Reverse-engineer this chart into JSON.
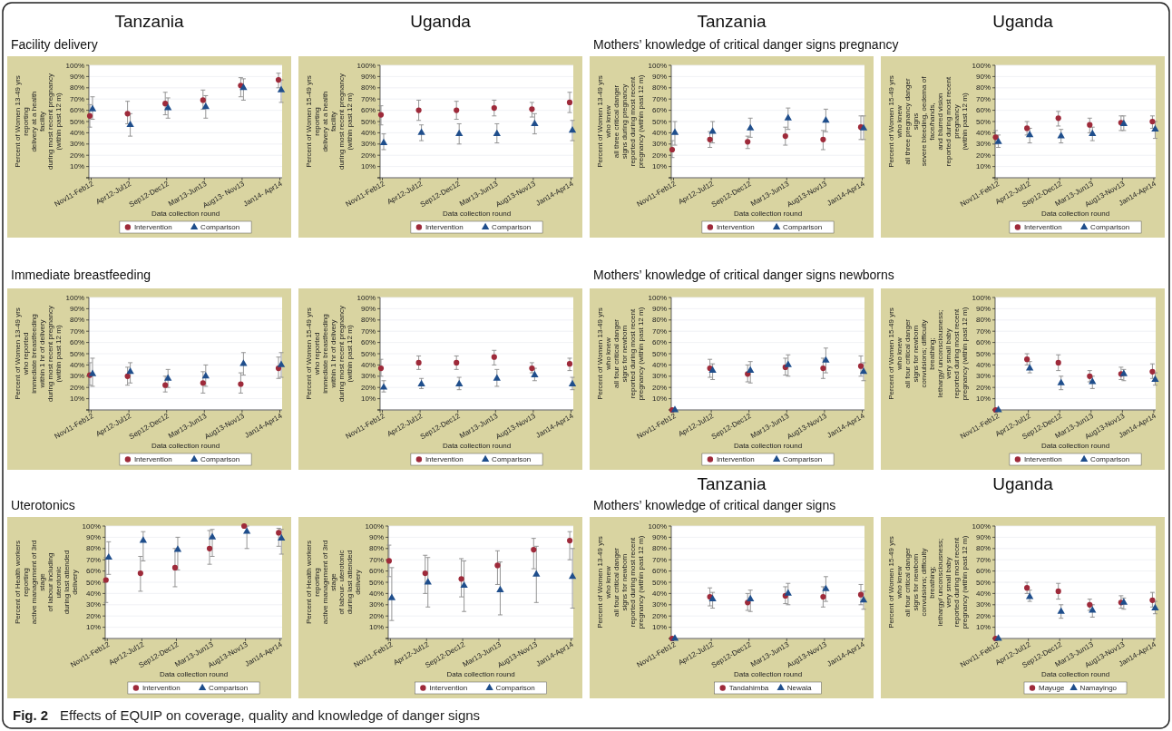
{
  "chart_data": [
    {
      "type": "scatter",
      "title": "Tanzania",
      "subtitle": "Facility delivery",
      "xlabel": "Data collection round",
      "ylabel": "Percent of Women 13-49 yrs reporting\ndelivery at a health facility\nduring most recent pregnancy (within past 12 m)",
      "categories": [
        "Nov11-Feb12",
        "Apr12-Jul12",
        "Sep12-Dec12",
        "Mar13-Jun13",
        "Aug13- Nov13",
        "Jan14- Apr14"
      ],
      "series": [
        {
          "name": "Intervention",
          "color": "#9e2a3a",
          "marker": "circle",
          "values": [
            55,
            57,
            66,
            69,
            82,
            87
          ],
          "errors": [
            [
              45,
              65
            ],
            [
              48,
              68
            ],
            [
              56,
              76
            ],
            [
              61,
              78
            ],
            [
              72,
              89
            ],
            [
              80,
              93
            ]
          ]
        },
        {
          "name": "Comparison",
          "color": "#1f4e8c",
          "marker": "triangle",
          "values": [
            61,
            47,
            62,
            63,
            80,
            78
          ],
          "errors": [
            [
              52,
              72
            ],
            [
              37,
              57
            ],
            [
              53,
              71
            ],
            [
              53,
              73
            ],
            [
              69,
              88
            ],
            [
              67,
              87
            ]
          ]
        }
      ],
      "ylim": [
        0,
        100
      ],
      "yticks": [
        {
          "value": 0,
          "label": null
        },
        {
          "value": 10,
          "label": "10%"
        },
        {
          "value": 20,
          "label": "20%"
        },
        {
          "value": 30,
          "label": "30%"
        },
        {
          "value": 40,
          "label": "40%"
        },
        {
          "value": 50,
          "label": "50%"
        },
        {
          "value": 60,
          "label": "60%"
        },
        {
          "value": 70,
          "label": "70%"
        },
        {
          "value": 80,
          "label": "80%"
        },
        {
          "value": 90,
          "label": "90%"
        },
        {
          "value": 100,
          "label": "100%"
        }
      ],
      "grid": "y",
      "legend": "bottom"
    },
    {
      "type": "scatter",
      "title": "Uganda",
      "xlabel": "Data collection round",
      "ylabel": "Percent of Women 15-49 yrs reporting\ndelivery at a health facility\nduring most recent pregnancy (within past 12 m)",
      "categories": [
        "Nov11-Feb12",
        "Apr12-Jul12",
        "Sep12-Dec12",
        "Mar13-Jun13",
        "Aug13-Nov13",
        "Jan14-Apr14"
      ],
      "series": [
        {
          "name": "Intervention",
          "color": "#9e2a3a",
          "marker": "circle",
          "values": [
            56,
            60,
            60,
            62,
            61,
            67
          ],
          "errors": [
            [
              47,
              64
            ],
            [
              51,
              69
            ],
            [
              52,
              68
            ],
            [
              55,
              69
            ],
            [
              54,
              67
            ],
            [
              58,
              76
            ]
          ]
        },
        {
          "name": "Comparison",
          "color": "#1f4e8c",
          "marker": "triangle",
          "values": [
            31,
            40,
            39,
            39,
            48,
            42
          ],
          "errors": [
            [
              25,
              39
            ],
            [
              33,
              47
            ],
            [
              30,
              48
            ],
            [
              31,
              48
            ],
            [
              39,
              57
            ],
            [
              33,
              51
            ]
          ]
        }
      ],
      "ylim": [
        0,
        100
      ],
      "yticks": [
        {
          "value": 0,
          "label": null
        },
        {
          "value": 10,
          "label": "10%"
        },
        {
          "value": 20,
          "label": "20%"
        },
        {
          "value": 30,
          "label": "30%"
        },
        {
          "value": 40,
          "label": "40%"
        },
        {
          "value": 50,
          "label": "50%"
        },
        {
          "value": 60,
          "label": "60%"
        },
        {
          "value": 70,
          "label": "70%"
        },
        {
          "value": 80,
          "label": "80%"
        },
        {
          "value": 90,
          "label": "90%"
        },
        {
          "value": 100,
          "label": "100%"
        }
      ],
      "grid": "y",
      "legend": "bottom"
    },
    {
      "type": "scatter",
      "title": "Tanzania",
      "subtitle": "Mothers’ knowledge of critical danger signs pregnancy",
      "xlabel": "Data collection round",
      "ylabel": "Percent of Women 13-49 yrs who knew\nall three critical danger\nsigns during pregnancy\nreported during most recent\npregnancy (within past 12 m)",
      "categories": [
        "Nov11-Feb12",
        "Apr12-Jul12",
        "Sep12-Dec12",
        "Mar13-Jun13",
        "Aug13-Nov13",
        "Jan14-Apr14"
      ],
      "series": [
        {
          "name": "Intervention",
          "color": "#9e2a3a",
          "marker": "circle",
          "values": [
            25,
            34,
            32,
            37,
            34,
            45
          ],
          "errors": [
            [
              18,
              33
            ],
            [
              27,
              41
            ],
            [
              26,
              37
            ],
            [
              29,
              45
            ],
            [
              25,
              42
            ],
            [
              34,
              55
            ]
          ]
        },
        {
          "name": "Comparison",
          "color": "#1f4e8c",
          "marker": "triangle",
          "values": [
            40,
            41,
            44,
            53,
            51,
            44
          ],
          "errors": [
            [
              29,
              50
            ],
            [
              31,
              50
            ],
            [
              36,
              53
            ],
            [
              43,
              62
            ],
            [
              41,
              61
            ],
            [
              34,
              55
            ]
          ]
        }
      ],
      "ylim": [
        0,
        100
      ],
      "yticks": [
        {
          "value": 0,
          "label": null
        },
        {
          "value": 10,
          "label": "10%"
        },
        {
          "value": 20,
          "label": "20%"
        },
        {
          "value": 30,
          "label": "30%"
        },
        {
          "value": 40,
          "label": "40%"
        },
        {
          "value": 50,
          "label": "50%"
        },
        {
          "value": 60,
          "label": "60%"
        },
        {
          "value": 70,
          "label": "70%"
        },
        {
          "value": 80,
          "label": "80%"
        },
        {
          "value": 90,
          "label": "90%"
        },
        {
          "value": 100,
          "label": "100%"
        }
      ],
      "grid": "y",
      "legend": "bottom"
    },
    {
      "type": "scatter",
      "title": "Uganda",
      "xlabel": "Data collection round",
      "ylabel": "Percent of Women 15-49 yrs who knew\nall three pregnancy danger signs\nsevere bleeding, oedema of face/hands,\nand blurred vision\nreported during most recent pregnancy\n(within past 12 m)",
      "categories": [
        "Nov11-Feb12",
        "Apr12-Jul12",
        "Sep12-Dec12",
        "Mar13-Jun13",
        "Aug13-Nov13",
        "Jan14-Apr14"
      ],
      "series": [
        {
          "name": "Intervention",
          "color": "#9e2a3a",
          "marker": "circle",
          "values": [
            36,
            44,
            53,
            47,
            49,
            50
          ],
          "errors": [
            [
              30,
              42
            ],
            [
              38,
              50
            ],
            [
              46,
              59
            ],
            [
              40,
              53
            ],
            [
              42,
              55
            ],
            [
              44,
              55
            ]
          ]
        },
        {
          "name": "Comparison",
          "color": "#1f4e8c",
          "marker": "triangle",
          "values": [
            32,
            38,
            37,
            39,
            48,
            43
          ],
          "errors": [
            [
              27,
              38
            ],
            [
              31,
              44
            ],
            [
              31,
              43
            ],
            [
              33,
              45
            ],
            [
              42,
              55
            ],
            [
              35,
              50
            ]
          ]
        }
      ],
      "ylim": [
        0,
        100
      ],
      "yticks": [
        {
          "value": 0,
          "label": null
        },
        {
          "value": 10,
          "label": "10%"
        },
        {
          "value": 20,
          "label": "20%"
        },
        {
          "value": 30,
          "label": "30%"
        },
        {
          "value": 40,
          "label": "40%"
        },
        {
          "value": 50,
          "label": "50%"
        },
        {
          "value": 60,
          "label": "60%"
        },
        {
          "value": 70,
          "label": "70%"
        },
        {
          "value": 80,
          "label": "80%"
        },
        {
          "value": 90,
          "label": "90%"
        },
        {
          "value": 100,
          "label": "100%"
        }
      ],
      "grid": "y",
      "legend": "bottom"
    },
    {
      "type": "scatter",
      "subtitle": "Immediate breastfeeding",
      "xlabel": "Data collection round",
      "ylabel": "Percent of Women 13-49 yrs who reported\nimmediate breastfeeding within 1 hr of delivery\nduring most recent pregnancy (within past 12 m)",
      "categories": [
        "Nov11-Feb12",
        "Apr12-Jul12",
        "Sep12-Dec12",
        "Mar13-Jun13",
        "Aug13-Nov13",
        "Jan14-Apr14"
      ],
      "series": [
        {
          "name": "Intervention",
          "color": "#9e2a3a",
          "marker": "circle",
          "values": [
            31,
            30,
            22,
            24,
            23,
            37
          ],
          "errors": [
            [
              22,
              42
            ],
            [
              22,
              38
            ],
            [
              16,
              30
            ],
            [
              15,
              34
            ],
            [
              15,
              33
            ],
            [
              28,
              47
            ]
          ]
        },
        {
          "name": "Comparison",
          "color": "#1f4e8c",
          "marker": "triangle",
          "values": [
            32,
            34,
            28,
            30,
            41,
            40
          ],
          "errors": [
            [
              21,
              46
            ],
            [
              24,
              42
            ],
            [
              20,
              36
            ],
            [
              21,
              40
            ],
            [
              31,
              51
            ],
            [
              29,
              51
            ]
          ]
        }
      ],
      "ylim": [
        0,
        100
      ],
      "yticks": [
        {
          "value": 0,
          "label": null
        },
        {
          "value": 10,
          "label": "10%"
        },
        {
          "value": 20,
          "label": "20%"
        },
        {
          "value": 30,
          "label": "30%"
        },
        {
          "value": 40,
          "label": "40%"
        },
        {
          "value": 50,
          "label": "50%"
        },
        {
          "value": 60,
          "label": "60%"
        },
        {
          "value": 70,
          "label": "70%"
        },
        {
          "value": 80,
          "label": "80%"
        },
        {
          "value": 90,
          "label": "90%"
        },
        {
          "value": 100,
          "label": "100%"
        }
      ],
      "grid": "y",
      "legend": "bottom"
    },
    {
      "type": "scatter",
      "xlabel": "Data collection round",
      "ylabel": "Percent of Women 15-49 yrs who reported\nimmediate breastfeeding within 1 hr of delivery\nduring most recent pregnancy (within past 12 m)",
      "categories": [
        "Nov11-Feb12",
        "Apr12-Jul12",
        "Sep12-Dec12",
        "Mar13-Jun13",
        "Aug13-Nov13",
        "Jan14-Apr14"
      ],
      "series": [
        {
          "name": "Intervention",
          "color": "#9e2a3a",
          "marker": "circle",
          "values": [
            37,
            42,
            42,
            47,
            37,
            41
          ],
          "errors": [
            [
              30,
              45
            ],
            [
              36,
              48
            ],
            [
              36,
              48
            ],
            [
              40,
              53
            ],
            [
              33,
              42
            ],
            [
              35,
              46
            ]
          ]
        },
        {
          "name": "Comparison",
          "color": "#1f4e8c",
          "marker": "triangle",
          "values": [
            20,
            23,
            23,
            28,
            31,
            23
          ],
          "errors": [
            [
              16,
              26
            ],
            [
              19,
              28
            ],
            [
              18,
              29
            ],
            [
              21,
              36
            ],
            [
              26,
              37
            ],
            [
              18,
              29
            ]
          ]
        }
      ],
      "ylim": [
        0,
        100
      ],
      "yticks": [
        {
          "value": 0,
          "label": null
        },
        {
          "value": 10,
          "label": "10%"
        },
        {
          "value": 20,
          "label": "20%"
        },
        {
          "value": 30,
          "label": "30%"
        },
        {
          "value": 40,
          "label": "40%"
        },
        {
          "value": 50,
          "label": "50%"
        },
        {
          "value": 60,
          "label": "60%"
        },
        {
          "value": 70,
          "label": "70%"
        },
        {
          "value": 80,
          "label": "80%"
        },
        {
          "value": 90,
          "label": "90%"
        },
        {
          "value": 100,
          "label": "100%"
        }
      ],
      "grid": "y",
      "legend": "bottom"
    },
    {
      "type": "scatter",
      "subtitle": "Mothers’ knowledge of critical danger signs newborns",
      "xlabel": "Data collection round",
      "ylabel": "Percent of Women 13-49 yrs who knew\nall four critical danger\nsigns for newborn\nreported during most recent\npregnancy (within past 12 m)",
      "categories": [
        "Nov11-Feb12",
        "Apr12-Jul12",
        "Sep12-Dec12",
        "Mar13-Jun13",
        "Aug13-Nov13",
        "Jan14-Apr14"
      ],
      "series": [
        {
          "name": "Intervention",
          "color": "#9e2a3a",
          "marker": "circle",
          "values": [
            0,
            37,
            32,
            38,
            37,
            39
          ],
          "errors": [
            null,
            [
              29,
              45
            ],
            [
              25,
              40
            ],
            [
              31,
              46
            ],
            [
              28,
              46
            ],
            [
              30,
              48
            ]
          ]
        },
        {
          "name": "Comparison",
          "color": "#1f4e8c",
          "marker": "triangle",
          "values": [
            0,
            35,
            35,
            40,
            44,
            34
          ],
          "errors": [
            null,
            [
              27,
              41
            ],
            [
              24,
              43
            ],
            [
              30,
              49
            ],
            [
              33,
              55
            ],
            [
              26,
              42
            ]
          ]
        }
      ],
      "ylim": [
        0,
        100
      ],
      "yticks": [
        {
          "value": 0,
          "label": null
        },
        {
          "value": 10,
          "label": "10%"
        },
        {
          "value": 20,
          "label": "20%"
        },
        {
          "value": 30,
          "label": "30%"
        },
        {
          "value": 40,
          "label": "40%"
        },
        {
          "value": 50,
          "label": "50%"
        },
        {
          "value": 60,
          "label": "60%"
        },
        {
          "value": 70,
          "label": "70%"
        },
        {
          "value": 80,
          "label": "80%"
        },
        {
          "value": 90,
          "label": "90%"
        },
        {
          "value": 100,
          "label": "100%"
        }
      ],
      "grid": "y",
      "legend": "bottom"
    },
    {
      "type": "scatter",
      "xlabel": "Data collection round",
      "ylabel": "Percent of Women 15-49 yrs who knew\nall four critical danger\nsigns for newborn\nconvulsions; difficulty breathing;\nlethargy/ unconsciousness; very small baby\nreported during most recent\npregnancy (within past 12 m)",
      "categories": [
        "Nov11-Feb12",
        "Apr12-Jul12",
        "Sep12-Dec12",
        "Mar13-Jun13",
        "Aug13-Nov13",
        "Jan14-Apr14"
      ],
      "series": [
        {
          "name": "Intervention",
          "color": "#9e2a3a",
          "marker": "circle",
          "values": [
            0,
            45,
            42,
            30,
            32,
            34
          ],
          "errors": [
            null,
            [
              40,
              50
            ],
            [
              35,
              49
            ],
            [
              25,
              35
            ],
            [
              27,
              38
            ],
            [
              28,
              41
            ]
          ]
        },
        {
          "name": "Comparison",
          "color": "#1f4e8c",
          "marker": "triangle",
          "values": [
            0,
            37,
            24,
            25,
            32,
            27
          ],
          "errors": [
            null,
            [
              33,
              43
            ],
            [
              18,
              30
            ],
            [
              19,
              30
            ],
            [
              26,
              36
            ],
            [
              22,
              33
            ]
          ]
        }
      ],
      "ylim": [
        0,
        100
      ],
      "yticks": [
        {
          "value": 0,
          "label": null
        },
        {
          "value": 10,
          "label": "10%"
        },
        {
          "value": 20,
          "label": "20%"
        },
        {
          "value": 30,
          "label": "30%"
        },
        {
          "value": 40,
          "label": "40%"
        },
        {
          "value": 50,
          "label": "50%"
        },
        {
          "value": 60,
          "label": "60%"
        },
        {
          "value": 70,
          "label": "70%"
        },
        {
          "value": 80,
          "label": "80%"
        },
        {
          "value": 90,
          "label": "90%"
        },
        {
          "value": 100,
          "label": "100%"
        }
      ],
      "grid": "y",
      "legend": "bottom"
    },
    {
      "type": "scatter",
      "subtitle": "Uterotonics",
      "xlabel": "Data collection round",
      "ylabel": "Percent of Health workers reporting\nactive management of 3rd stage\nof labour including uterotonic\nduring last attended delivery",
      "categories": [
        "Nov11-Feb12",
        "Apr12-Jul12",
        "Sep12-Dec12",
        "Mar13-Jun13",
        "Aug13-Nov13",
        "Jan14-Apr14"
      ],
      "series": [
        {
          "name": "Intervention",
          "color": "#9e2a3a",
          "marker": "circle",
          "values": [
            52,
            58,
            63,
            80,
            100,
            94
          ],
          "errors": [
            [
              32,
              72
            ],
            [
              42,
              73
            ],
            [
              46,
              80
            ],
            [
              66,
              96
            ],
            null,
            [
              82,
              98
            ]
          ]
        },
        {
          "name": "Comparison",
          "color": "#1f4e8c",
          "marker": "triangle",
          "values": [
            72,
            87,
            79,
            90,
            95,
            89
          ],
          "errors": [
            [
              57,
              86
            ],
            [
              69,
              95
            ],
            [
              61,
              90
            ],
            [
              73,
              97
            ],
            [
              80,
              100
            ],
            [
              75,
              97
            ]
          ]
        }
      ],
      "ylim": [
        0,
        100
      ],
      "yticks": [
        {
          "value": 0,
          "label": null
        },
        {
          "value": 10,
          "label": "10%"
        },
        {
          "value": 20,
          "label": "20%"
        },
        {
          "value": 30,
          "label": "30%"
        },
        {
          "value": 40,
          "label": "40%"
        },
        {
          "value": 50,
          "label": "50%"
        },
        {
          "value": 60,
          "label": "60%"
        },
        {
          "value": 70,
          "label": "70%"
        },
        {
          "value": 80,
          "label": "80%"
        },
        {
          "value": 90,
          "label": "90%"
        },
        {
          "value": 100,
          "label": "100%"
        }
      ],
      "grid": "y",
      "legend": "bottom",
      "annotations": [
        "Fig. 2",
        "Effects of EQUIP on coverage, quality and knowledge of danger signs"
      ]
    },
    {
      "type": "scatter",
      "xlabel": "Data collection round",
      "ylabel": "Percent of Health workers reporting\nactive management of 3rd stage\nof labour- uterotonic\nduring last attended delivery",
      "categories": [
        "Nov11-Feb12",
        "Apr12-Jul12",
        "Sep12-Dec12",
        "Mar13-Jun13",
        "Aug13-Nov13",
        "Jan14-Apr14"
      ],
      "series": [
        {
          "name": "Intervention",
          "color": "#9e2a3a",
          "marker": "circle",
          "values": [
            69,
            58,
            53,
            65,
            79,
            87
          ],
          "errors": [
            [
              55,
              83
            ],
            [
              40,
              74
            ],
            [
              37,
              71
            ],
            [
              48,
              78
            ],
            [
              62,
              89
            ],
            [
              70,
              95
            ]
          ]
        },
        {
          "name": "Comparison",
          "color": "#1f4e8c",
          "marker": "triangle",
          "values": [
            36,
            50,
            47,
            43,
            57,
            55
          ],
          "errors": [
            [
              16,
              63
            ],
            [
              28,
              72
            ],
            [
              24,
              69
            ],
            [
              21,
              68
            ],
            [
              32,
              82
            ],
            [
              27,
              80
            ]
          ]
        }
      ],
      "ylim": [
        0,
        100
      ],
      "yticks": [
        {
          "value": 0,
          "label": null
        },
        {
          "value": 10,
          "label": "10%"
        },
        {
          "value": 20,
          "label": "20%"
        },
        {
          "value": 30,
          "label": "30%"
        },
        {
          "value": 40,
          "label": "40%"
        },
        {
          "value": 50,
          "label": "50%"
        },
        {
          "value": 60,
          "label": "60%"
        },
        {
          "value": 70,
          "label": "70%"
        },
        {
          "value": 80,
          "label": "80%"
        },
        {
          "value": 90,
          "label": "90%"
        },
        {
          "value": 100,
          "label": "100%"
        }
      ],
      "grid": "y",
      "legend": "bottom"
    },
    {
      "type": "scatter",
      "title": "Tanzania",
      "subtitle": "Mothers’ knowledge of critical danger signs",
      "xlabel": "Data collection round",
      "ylabel": "Percent of Women 13-49 yrs who knew\nall four critical danger\nsigns for newborn\nreported during most recent\npregnancy (within past 12 m)",
      "categories": [
        "Nov11-Feb12",
        "Apr12-Jul12",
        "Sep12-Dec12",
        "Mar13-Jun13",
        "Aug13-Nov13",
        "Jan14-Apr14"
      ],
      "series": [
        {
          "name": "Tandahimba",
          "color": "#9e2a3a",
          "marker": "circle",
          "values": [
            0,
            37,
            32,
            38,
            37,
            39
          ],
          "errors": [
            null,
            [
              29,
              45
            ],
            [
              25,
              40
            ],
            [
              31,
              46
            ],
            [
              28,
              46
            ],
            [
              30,
              48
            ]
          ]
        },
        {
          "name": "Newala",
          "color": "#1f4e8c",
          "marker": "triangle",
          "values": [
            0,
            35,
            35,
            40,
            44,
            34
          ],
          "errors": [
            null,
            [
              27,
              41
            ],
            [
              24,
              43
            ],
            [
              30,
              49
            ],
            [
              33,
              55
            ],
            [
              26,
              42
            ]
          ]
        }
      ],
      "ylim": [
        0,
        100
      ],
      "yticks": [
        {
          "value": 0,
          "label": null
        },
        {
          "value": 10,
          "label": "10%"
        },
        {
          "value": 20,
          "label": "20%"
        },
        {
          "value": 30,
          "label": "30%"
        },
        {
          "value": 40,
          "label": "40%"
        },
        {
          "value": 50,
          "label": "50%"
        },
        {
          "value": 60,
          "label": "60%"
        },
        {
          "value": 70,
          "label": "70%"
        },
        {
          "value": 80,
          "label": "80%"
        },
        {
          "value": 90,
          "label": "90%"
        },
        {
          "value": 100,
          "label": "100%"
        }
      ],
      "grid": "y",
      "legend": "bottom"
    },
    {
      "type": "scatter",
      "title": "Uganda",
      "xlabel": "Data collection round",
      "ylabel": "Percent of Women 15-49 yrs who knew\nall four critical danger\nsigns for newborn\nconvulsions; difficulty breathing;\nlethargy/ unconsciousness; very small baby\nreported during most recent\npregnancy (within past 12 m)",
      "categories": [
        "Nov11-Feb12",
        "Apr12-Jul12",
        "Sep12-Dec12",
        "Mar13-Jun13",
        "Aug13-Nov13",
        "Jan14-Apr14"
      ],
      "series": [
        {
          "name": "Mayuge",
          "color": "#9e2a3a",
          "marker": "circle",
          "values": [
            0,
            45,
            42,
            30,
            32,
            34
          ],
          "errors": [
            null,
            [
              40,
              50
            ],
            [
              35,
              49
            ],
            [
              25,
              35
            ],
            [
              27,
              38
            ],
            [
              28,
              41
            ]
          ]
        },
        {
          "name": "Namayingo",
          "color": "#1f4e8c",
          "marker": "triangle",
          "values": [
            0,
            37,
            24,
            25,
            32,
            27
          ],
          "errors": [
            null,
            [
              33,
              43
            ],
            [
              18,
              30
            ],
            [
              19,
              30
            ],
            [
              26,
              36
            ],
            [
              22,
              33
            ]
          ]
        }
      ],
      "ylim": [
        0,
        100
      ],
      "yticks": [
        {
          "value": 0,
          "label": null
        },
        {
          "value": 10,
          "label": "10%"
        },
        {
          "value": 20,
          "label": "20%"
        },
        {
          "value": 30,
          "label": "30%"
        },
        {
          "value": 40,
          "label": "40%"
        },
        {
          "value": 50,
          "label": "50%"
        },
        {
          "value": 60,
          "label": "60%"
        },
        {
          "value": 70,
          "label": "70%"
        },
        {
          "value": 80,
          "label": "80%"
        },
        {
          "value": 90,
          "label": "90%"
        },
        {
          "value": 100,
          "label": "100%"
        }
      ],
      "grid": "y",
      "legend": "bottom"
    }
  ]
}
